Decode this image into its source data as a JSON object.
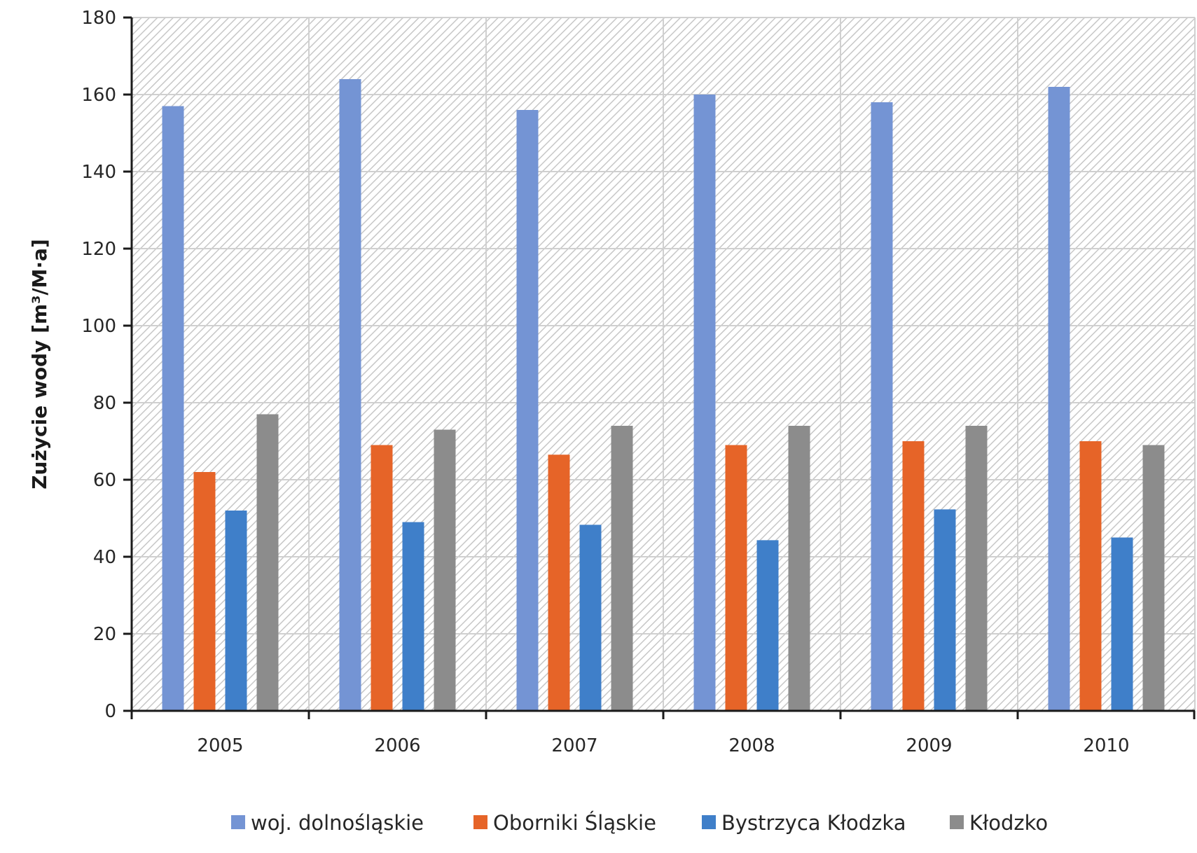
{
  "chart_data": {
    "type": "bar",
    "title": "",
    "xlabel": "",
    "ylabel": "Zużycie wody [m³/M·a]",
    "categories": [
      "2005",
      "2006",
      "2007",
      "2008",
      "2009",
      "2010"
    ],
    "ylim": [
      0,
      180
    ],
    "yticks": [
      0,
      20,
      40,
      60,
      80,
      100,
      120,
      140,
      160,
      180
    ],
    "grid": true,
    "legend_position": "bottom",
    "series": [
      {
        "name": "woj. dolnośląskie",
        "color": "#7494d4",
        "values": [
          157,
          164,
          156,
          160,
          158,
          162
        ]
      },
      {
        "name": "Oborniki Śląskie",
        "color": "#e66428",
        "values": [
          62,
          69,
          66.5,
          69,
          70,
          70
        ]
      },
      {
        "name": "Bystrzyca Kłodzka",
        "color": "#3f7fc9",
        "values": [
          52,
          49,
          48.3,
          44.3,
          52.3,
          45
        ]
      },
      {
        "name": "Kłodzko",
        "color": "#8c8c8c",
        "values": [
          77,
          73,
          74,
          74,
          74,
          69
        ]
      }
    ]
  }
}
